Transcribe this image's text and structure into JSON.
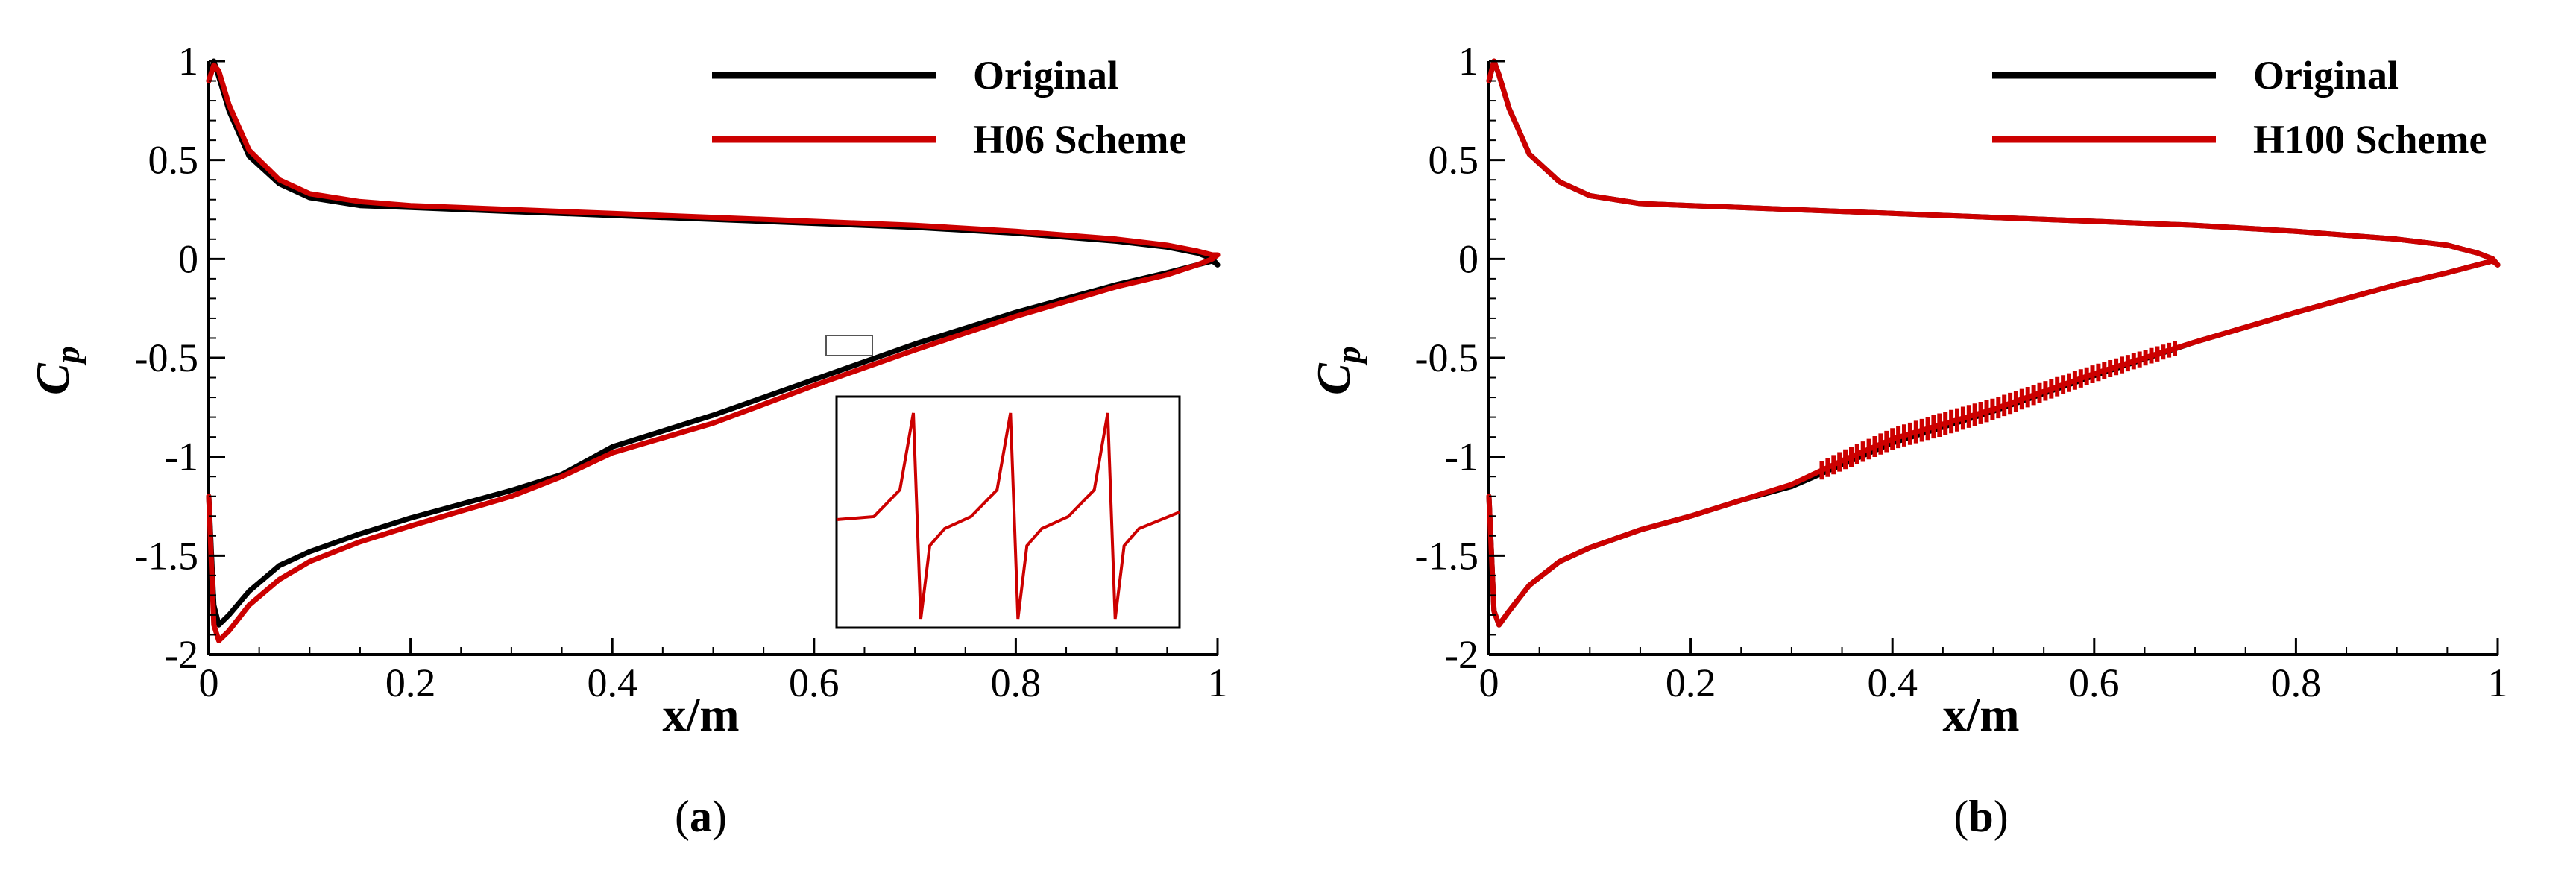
{
  "panels": [
    {
      "caption_open": "(",
      "caption_letter": "a",
      "caption_close": ")"
    },
    {
      "caption_open": "(",
      "caption_letter": "b",
      "caption_close": ")"
    }
  ],
  "chart_data": [
    {
      "type": "line",
      "xlabel": "x/m",
      "ylabel_main": "C",
      "ylabel_sub": "p",
      "xlim": [
        0,
        1
      ],
      "ylim": [
        -2,
        1
      ],
      "xticks": [
        0,
        0.2,
        0.4,
        0.6,
        0.8,
        1
      ],
      "xtick_labels": [
        "0",
        "0.2",
        "0.4",
        "0.6",
        "0.8",
        "1"
      ],
      "yticks": [
        1,
        0.5,
        0,
        -0.5,
        -1,
        -1.5,
        -2
      ],
      "ytick_labels": [
        "1",
        "0.5",
        "0",
        "-0.5",
        "-1",
        "-1.5",
        "-2"
      ],
      "legend_position": "top-right",
      "inset": {
        "description_shown": "zoomed view of small box near x≈0.63, y≈-0.47",
        "box_x": [
          0.615,
          0.66
        ],
        "box_y": [
          -0.52,
          -0.44
        ],
        "oscillation_cycles": 3
      },
      "series": [
        {
          "name": "Original",
          "color": "#000000",
          "upper": {
            "x": [
              0,
              0.005,
              0.01,
              0.02,
              0.04,
              0.07,
              0.1,
              0.15,
              0.2,
              0.3,
              0.4,
              0.5,
              0.6,
              0.7,
              0.8,
              0.9,
              0.95,
              0.98,
              0.995,
              1.0
            ],
            "y": [
              0.9,
              1.0,
              0.92,
              0.75,
              0.52,
              0.38,
              0.31,
              0.27,
              0.26,
              0.24,
              0.22,
              0.2,
              0.18,
              0.16,
              0.13,
              0.09,
              0.06,
              0.03,
              0.0,
              -0.03
            ]
          },
          "lower": {
            "x": [
              0,
              0.005,
              0.01,
              0.02,
              0.04,
              0.07,
              0.1,
              0.15,
              0.2,
              0.3,
              0.35,
              0.4,
              0.5,
              0.6,
              0.7,
              0.8,
              0.9,
              0.95,
              0.98,
              0.995,
              1.0
            ],
            "y": [
              -1.2,
              -1.75,
              -1.85,
              -1.8,
              -1.68,
              -1.55,
              -1.48,
              -1.39,
              -1.31,
              -1.17,
              -1.09,
              -0.95,
              -0.79,
              -0.61,
              -0.43,
              -0.27,
              -0.13,
              -0.07,
              -0.03,
              -0.01,
              -0.03
            ]
          }
        },
        {
          "name": "H06 Scheme",
          "color": "#cc0000",
          "upper": {
            "x": [
              0,
              0.005,
              0.01,
              0.02,
              0.04,
              0.07,
              0.1,
              0.15,
              0.2,
              0.3,
              0.4,
              0.5,
              0.6,
              0.7,
              0.8,
              0.9,
              0.95,
              0.98,
              0.995,
              1.0
            ],
            "y": [
              0.9,
              0.98,
              0.95,
              0.78,
              0.55,
              0.4,
              0.33,
              0.29,
              0.27,
              0.25,
              0.23,
              0.21,
              0.19,
              0.17,
              0.14,
              0.1,
              0.07,
              0.04,
              0.02,
              0.02
            ]
          },
          "lower": {
            "x": [
              0,
              0.005,
              0.01,
              0.02,
              0.04,
              0.07,
              0.1,
              0.15,
              0.2,
              0.3,
              0.35,
              0.4,
              0.5,
              0.6,
              0.7,
              0.8,
              0.9,
              0.95,
              0.98,
              0.995,
              1.0
            ],
            "y": [
              -1.2,
              -1.85,
              -1.93,
              -1.88,
              -1.75,
              -1.62,
              -1.53,
              -1.43,
              -1.35,
              -1.2,
              -1.1,
              -0.98,
              -0.83,
              -0.64,
              -0.46,
              -0.29,
              -0.14,
              -0.08,
              -0.03,
              0.0,
              0.02
            ]
          }
        }
      ]
    },
    {
      "type": "line",
      "xlabel": "x/m",
      "ylabel_main": "C",
      "ylabel_sub": "p",
      "xlim": [
        0,
        1
      ],
      "ylim": [
        -2,
        1
      ],
      "xticks": [
        0,
        0.2,
        0.4,
        0.6,
        0.8,
        1
      ],
      "xtick_labels": [
        "0",
        "0.2",
        "0.4",
        "0.6",
        "0.8",
        "1"
      ],
      "yticks": [
        1,
        0.5,
        0,
        -0.5,
        -1,
        -1.5,
        -2
      ],
      "ytick_labels": [
        "1",
        "0.5",
        "0",
        "-0.5",
        "-1",
        "-1.5",
        "-2"
      ],
      "legend_position": "top-right",
      "oscillation_range_x": [
        0.33,
        0.68
      ],
      "series": [
        {
          "name": "Original",
          "color": "#000000",
          "upper": {
            "x": [
              0,
              0.005,
              0.01,
              0.02,
              0.04,
              0.07,
              0.1,
              0.15,
              0.2,
              0.3,
              0.4,
              0.5,
              0.6,
              0.7,
              0.8,
              0.9,
              0.95,
              0.98,
              0.995,
              1.0
            ],
            "y": [
              0.9,
              1.0,
              0.93,
              0.76,
              0.53,
              0.39,
              0.32,
              0.28,
              0.27,
              0.25,
              0.23,
              0.21,
              0.19,
              0.17,
              0.14,
              0.1,
              0.07,
              0.03,
              0.0,
              -0.03
            ]
          },
          "lower": {
            "x": [
              0,
              0.005,
              0.01,
              0.02,
              0.04,
              0.07,
              0.1,
              0.15,
              0.2,
              0.25,
              0.3,
              0.35,
              0.4,
              0.5,
              0.6,
              0.7,
              0.8,
              0.9,
              0.95,
              0.98,
              0.995,
              1.0
            ],
            "y": [
              -1.2,
              -1.78,
              -1.85,
              -1.78,
              -1.65,
              -1.53,
              -1.46,
              -1.37,
              -1.3,
              -1.22,
              -1.15,
              -1.04,
              -0.93,
              -0.77,
              -0.59,
              -0.42,
              -0.27,
              -0.13,
              -0.07,
              -0.03,
              -0.01,
              -0.03
            ]
          }
        },
        {
          "name": "H100 Scheme",
          "color": "#cc0000",
          "upper": {
            "x": [
              0,
              0.005,
              0.01,
              0.02,
              0.04,
              0.07,
              0.1,
              0.15,
              0.2,
              0.3,
              0.4,
              0.5,
              0.6,
              0.7,
              0.8,
              0.9,
              0.95,
              0.98,
              0.995,
              1.0
            ],
            "y": [
              0.9,
              1.0,
              0.93,
              0.76,
              0.53,
              0.39,
              0.32,
              0.28,
              0.27,
              0.25,
              0.23,
              0.21,
              0.19,
              0.17,
              0.14,
              0.1,
              0.07,
              0.03,
              0.0,
              -0.03
            ]
          },
          "lower": {
            "x": [
              0,
              0.005,
              0.01,
              0.02,
              0.04,
              0.07,
              0.1,
              0.15,
              0.2,
              0.25,
              0.3,
              0.35,
              0.4,
              0.5,
              0.6,
              0.7,
              0.8,
              0.9,
              0.95,
              0.98,
              0.995,
              1.0
            ],
            "y": [
              -1.2,
              -1.78,
              -1.85,
              -1.78,
              -1.65,
              -1.53,
              -1.46,
              -1.37,
              -1.3,
              -1.22,
              -1.14,
              -1.02,
              -0.91,
              -0.76,
              -0.58,
              -0.42,
              -0.27,
              -0.13,
              -0.07,
              -0.03,
              -0.01,
              -0.03
            ]
          }
        }
      ]
    }
  ]
}
